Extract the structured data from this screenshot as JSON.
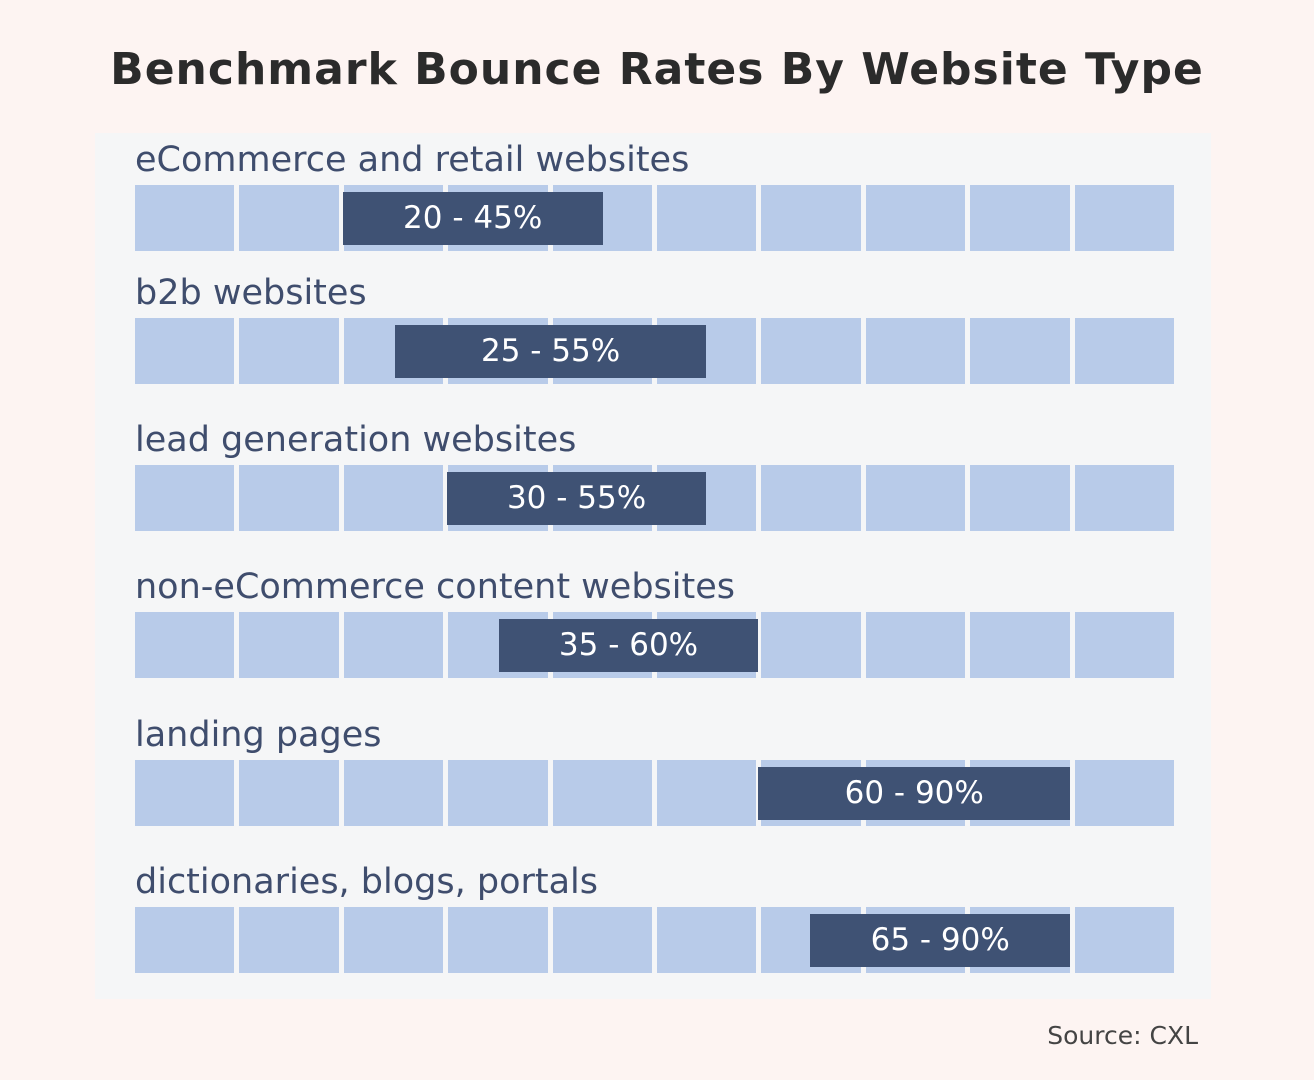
{
  "title": "Benchmark Bounce Rates By Website Type",
  "source": "Source: CXL",
  "colors": {
    "background": "#fdf4f2",
    "panel": "#f5f6f7",
    "cell": "#b8cbe9",
    "range_bar": "#3f5274",
    "label_text": "#3f4d6d"
  },
  "chart_data": {
    "type": "bar",
    "title": "Benchmark Bounce Rates By Website Type",
    "xlim": [
      0,
      100
    ],
    "grid_cells": 10,
    "categories": [
      "eCommerce and retail websites",
      "b2b websites",
      "lead generation websites",
      "non-eCommerce content websites",
      "landing pages",
      "dictionaries, blogs, portals"
    ],
    "ranges": [
      {
        "low": 20,
        "high": 45,
        "label": "20 - 45%"
      },
      {
        "low": 25,
        "high": 55,
        "label": "25 - 55%"
      },
      {
        "low": 30,
        "high": 55,
        "label": "30 - 55%"
      },
      {
        "low": 35,
        "high": 60,
        "label": "35 - 60%"
      },
      {
        "low": 60,
        "high": 90,
        "label": "60 - 90%"
      },
      {
        "low": 65,
        "high": 90,
        "label": "65 - 90%"
      }
    ]
  }
}
